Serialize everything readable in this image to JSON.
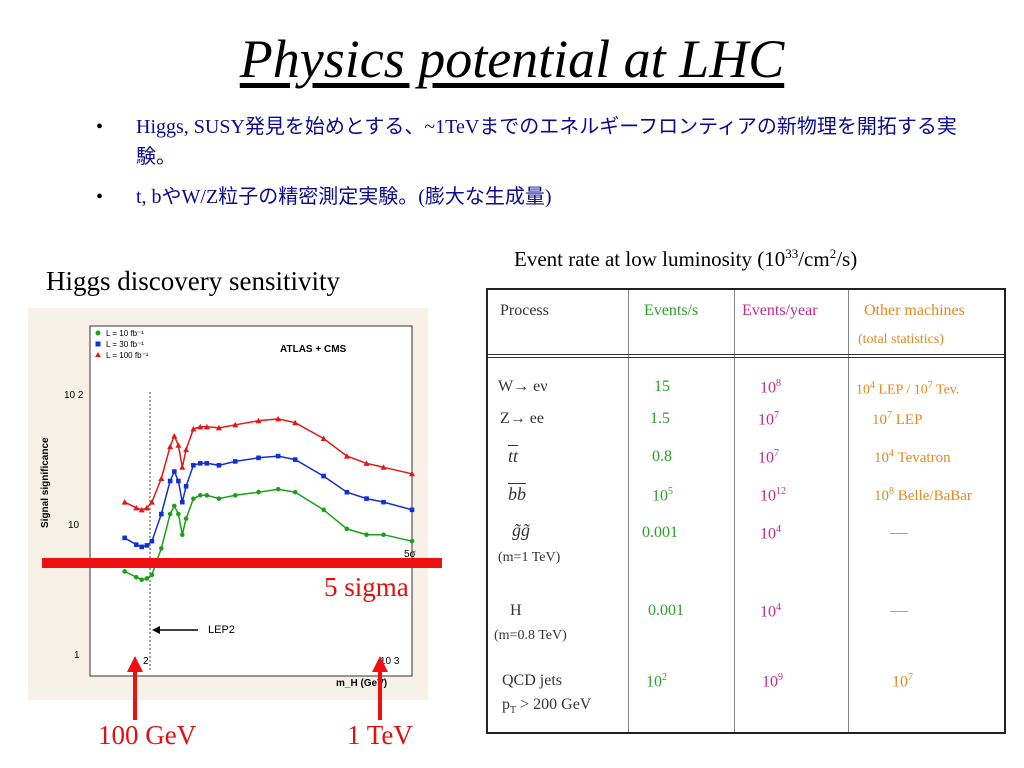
{
  "title": "Physics potential at LHC",
  "bullets": [
    "Higgs, SUSY発見を始めとする、~1TeVまでのエネルギーフロンティアの新物理を開拓する実験。",
    "t, bやW/Z粒子の精密測定実験。(膨大な生成量)"
  ],
  "left_heading": "Higgs discovery sensitivity",
  "right_heading": {
    "text": "Event rate at low luminosity (10",
    "exp": "33",
    "mid": "/cm",
    "exp2": "2",
    "tail": "/s)"
  },
  "plot": {
    "ylabel": "Signal significance",
    "xlabel": "m_H (GeV)",
    "legend": [
      "L = 10 fb⁻¹",
      "L = 30 fb⁻¹",
      "L = 100 fb⁻¹"
    ],
    "inset_label": "ATLAS + CMS",
    "lep2_label": "LEP2",
    "five_sigma_small": "5σ",
    "ytick_labels": [
      "10 2",
      "10",
      "1"
    ],
    "xtick_labels": [
      "2",
      "10 3"
    ],
    "colors": {
      "green": "#1aa01a",
      "blue": "#1030d0",
      "red": "#e01818",
      "bar": "#ee1010"
    }
  },
  "five_sigma_label": "5 sigma",
  "arrow_100gev": "100 GeV",
  "arrow_1tev": "1 TeV",
  "chart_data": {
    "type": "line",
    "ylabel": "Signal significance",
    "xlabel": "m_H (GeV)",
    "x_scale": "log",
    "y_scale": "log",
    "xlim": [
      80,
      1000
    ],
    "ylim": [
      1,
      300
    ],
    "series": [
      {
        "name": "L = 10 fb⁻¹",
        "color": "#1aa01a",
        "x": [
          105,
          115,
          120,
          125,
          130,
          140,
          150,
          155,
          160,
          165,
          170,
          180,
          190,
          200,
          220,
          250,
          300,
          350,
          400,
          500,
          600,
          700,
          800,
          1000
        ],
        "y": [
          5.5,
          5,
          4.8,
          4.9,
          5.2,
          8,
          14,
          16,
          14,
          10,
          13,
          18,
          19,
          19,
          18,
          19,
          20,
          21,
          20,
          15,
          11,
          10,
          10,
          9
        ]
      },
      {
        "name": "L = 30 fb⁻¹",
        "color": "#1030d0",
        "x": [
          105,
          115,
          120,
          125,
          130,
          140,
          150,
          155,
          160,
          165,
          170,
          180,
          190,
          200,
          220,
          250,
          300,
          350,
          400,
          500,
          600,
          700,
          800,
          1000
        ],
        "y": [
          9.5,
          8.5,
          8.2,
          8.4,
          9,
          14,
          24,
          28,
          24,
          17,
          22,
          31,
          32,
          32,
          31,
          33,
          35,
          36,
          34,
          26,
          20,
          18,
          17,
          15
        ]
      },
      {
        "name": "L = 100 fb⁻¹",
        "color": "#e01818",
        "x": [
          105,
          115,
          120,
          125,
          130,
          140,
          150,
          155,
          160,
          165,
          170,
          180,
          190,
          200,
          220,
          250,
          300,
          350,
          400,
          500,
          600,
          700,
          800,
          1000
        ],
        "y": [
          17,
          15.5,
          15,
          15.5,
          17,
          25,
          42,
          50,
          43,
          30,
          40,
          56,
          58,
          58,
          57,
          60,
          64,
          66,
          62,
          48,
          36,
          32,
          30,
          27
        ]
      }
    ],
    "lines": [
      {
        "label": "5σ",
        "y": 5
      },
      {
        "label": "LEP2",
        "x": 115
      }
    ]
  },
  "table": {
    "headers": [
      "Process",
      "Events/s",
      "Events/year",
      "Other machines",
      "(total statistics)"
    ],
    "rows": [
      {
        "process": "W→ eν",
        "eps": "15",
        "epy": {
          "b": "10",
          "e": "8"
        },
        "other": {
          "b1": "10",
          "e1": "4",
          "t1": " LEP / 10",
          "e2": "7",
          "t2": " Tev."
        }
      },
      {
        "process": "Z→ ee",
        "eps": "1.5",
        "epy": {
          "b": "10",
          "e": "7"
        },
        "other": {
          "b1": "10",
          "e1": "7",
          "t1": "  LEP",
          "e2": "",
          "t2": ""
        }
      },
      {
        "process": "tt",
        "eps": "0.8",
        "epy": {
          "b": "10",
          "e": "7"
        },
        "other": {
          "b1": "10",
          "e1": "4",
          "t1": "  Tevatron",
          "e2": "",
          "t2": ""
        }
      },
      {
        "process": "bb",
        "eps_b": "10",
        "eps_e": "5",
        "epy": {
          "b": "10",
          "e": "12"
        },
        "other": {
          "b1": "10",
          "e1": "8",
          "t1": " Belle/BaBar",
          "e2": "",
          "t2": ""
        }
      },
      {
        "process": "g̃g̃",
        "sub": "(m=1 TeV)",
        "eps": "0.001",
        "epy": {
          "b": "10",
          "e": "4"
        },
        "other_dash": "—"
      },
      {
        "process": "H",
        "sub": "(m=0.8 TeV)",
        "eps": "0.001",
        "epy": {
          "b": "10",
          "e": "4"
        },
        "other_dash": "—"
      },
      {
        "process": "QCD jets",
        "sub_base": "p",
        "sub_index": "T",
        "sub_tail": " > 200 GeV",
        "eps_b": "10",
        "eps_e": "2",
        "epy": {
          "b": "10",
          "e": "9"
        },
        "other_b": "10",
        "other_e": "7"
      }
    ]
  }
}
